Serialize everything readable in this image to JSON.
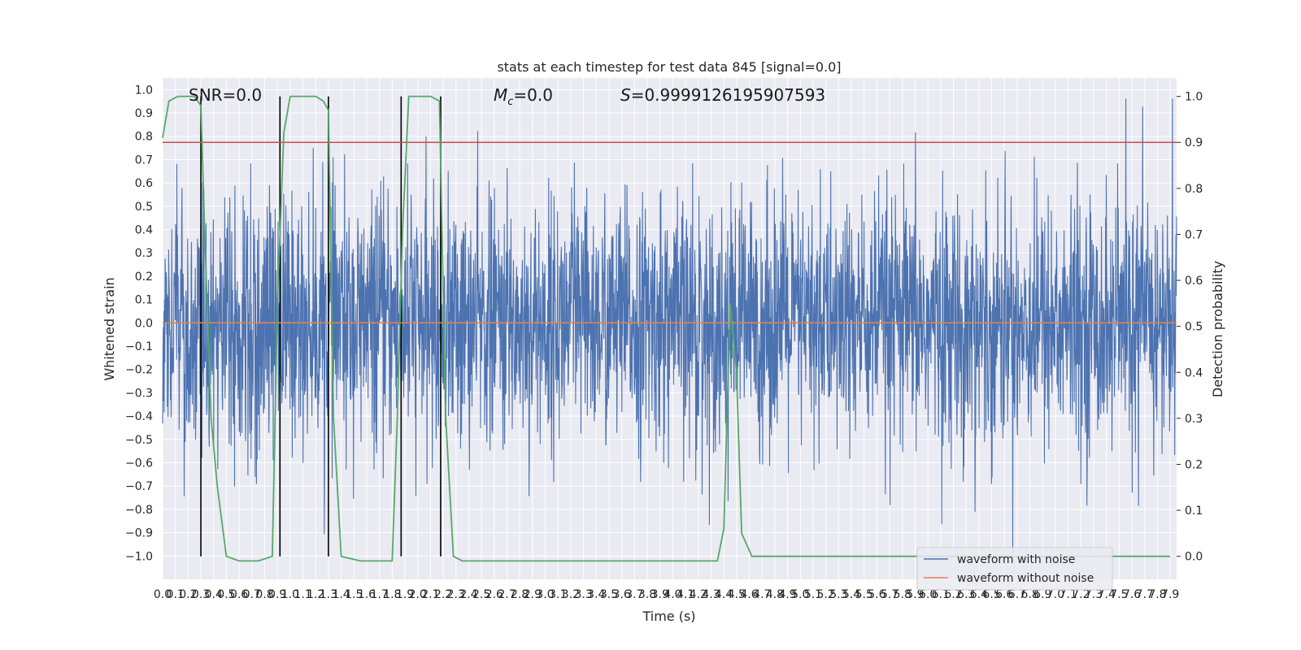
{
  "chart_data": {
    "type": "line",
    "title": "stats at each timestep for test data 845 [signal=0.0]",
    "xlabel": "Time (s)",
    "ylabel_left": "Whitened strain",
    "ylabel_right": "Detection probability",
    "xlim": [
      0.0,
      7.95
    ],
    "ylim_left": [
      -1.1,
      1.05
    ],
    "ylim_right": [
      -0.05,
      1.04
    ],
    "xticks": [
      "0.0",
      "0.1",
      "0.2",
      "0.3",
      "0.4",
      "0.5",
      "0.6",
      "0.7",
      "0.8",
      "0.9",
      "1.0",
      "1.1",
      "1.2",
      "1.3",
      "1.4",
      "1.5",
      "1.6",
      "1.7",
      "1.8",
      "1.9",
      "2.0",
      "2.1",
      "2.2",
      "2.3",
      "2.4",
      "2.5",
      "2.6",
      "2.7",
      "2.8",
      "2.9",
      "3.0",
      "3.1",
      "3.2",
      "3.3",
      "3.4",
      "3.5",
      "3.6",
      "3.7",
      "3.8",
      "3.9",
      "4.0",
      "4.1",
      "4.2",
      "4.3",
      "4.4",
      "4.5",
      "4.6",
      "4.7",
      "4.8",
      "4.9",
      "5.0",
      "5.1",
      "5.2",
      "5.3",
      "5.4",
      "5.5",
      "5.6",
      "5.7",
      "5.8",
      "5.9",
      "6.0",
      "6.1",
      "6.2",
      "6.3",
      "6.4",
      "6.5",
      "6.6",
      "6.7",
      "6.8",
      "6.9",
      "7.0",
      "7.1",
      "7.2",
      "7.3",
      "7.4",
      "7.5",
      "7.6",
      "7.7",
      "7.8",
      "7.9"
    ],
    "yticks_left": [
      "1.0",
      "0.9",
      "0.8",
      "0.7",
      "0.6",
      "0.5",
      "0.4",
      "0.3",
      "0.2",
      "0.1",
      "0.0",
      "−0.1",
      "−0.2",
      "−0.3",
      "−0.4",
      "−0.5",
      "−0.6",
      "−0.7",
      "−0.8",
      "−0.9",
      "−1.0"
    ],
    "yticks_right": [
      "1.0",
      "0.9",
      "0.8",
      "0.7",
      "0.6",
      "0.5",
      "0.4",
      "0.3",
      "0.2",
      "0.1",
      "0.0"
    ],
    "annotations": {
      "snr": "SNR=0.0",
      "mc_symbol": "M",
      "mc_sub": "c",
      "mc_value": "=0.0",
      "s_symbol": "S",
      "s_value": "=0.9999126195907593"
    },
    "threshold": {
      "axis": "right",
      "value": 0.9,
      "color": "#c44e52"
    },
    "vertical_lines_x": [
      0.3,
      0.92,
      1.3,
      1.87,
      2.18
    ],
    "detection_probability": {
      "x": [
        0.0,
        0.05,
        0.12,
        0.25,
        0.3,
        0.33,
        0.38,
        0.43,
        0.5,
        0.6,
        0.75,
        0.86,
        0.9,
        0.95,
        1.0,
        1.1,
        1.2,
        1.26,
        1.3,
        1.34,
        1.4,
        1.55,
        1.75,
        1.8,
        1.84,
        1.88,
        1.93,
        2.0,
        2.1,
        2.17,
        2.22,
        2.28,
        2.35,
        3.0,
        4.0,
        4.35,
        4.4,
        4.45,
        4.5,
        4.54,
        4.62,
        5.0,
        6.0,
        7.0,
        7.9
      ],
      "y": [
        0.91,
        0.99,
        1.0,
        1.0,
        0.98,
        0.7,
        0.3,
        0.15,
        0.0,
        -0.01,
        -0.01,
        0.0,
        0.55,
        0.92,
        1.0,
        1.0,
        1.0,
        0.99,
        0.97,
        0.3,
        0.0,
        -0.01,
        -0.01,
        -0.01,
        0.3,
        0.7,
        1.0,
        1.0,
        1.0,
        0.99,
        0.3,
        0.0,
        -0.01,
        -0.01,
        -0.01,
        -0.01,
        0.06,
        0.55,
        0.4,
        0.05,
        0.0,
        0.0,
        0.0,
        0.0,
        0.0
      ]
    },
    "series": [
      {
        "name": "waveform with noise",
        "color": "#4c72b0"
      },
      {
        "name": "waveform without noise",
        "color": "#dd8452"
      }
    ],
    "detection_color": "#55a868",
    "grid": true,
    "legend_position": "lower-right"
  }
}
